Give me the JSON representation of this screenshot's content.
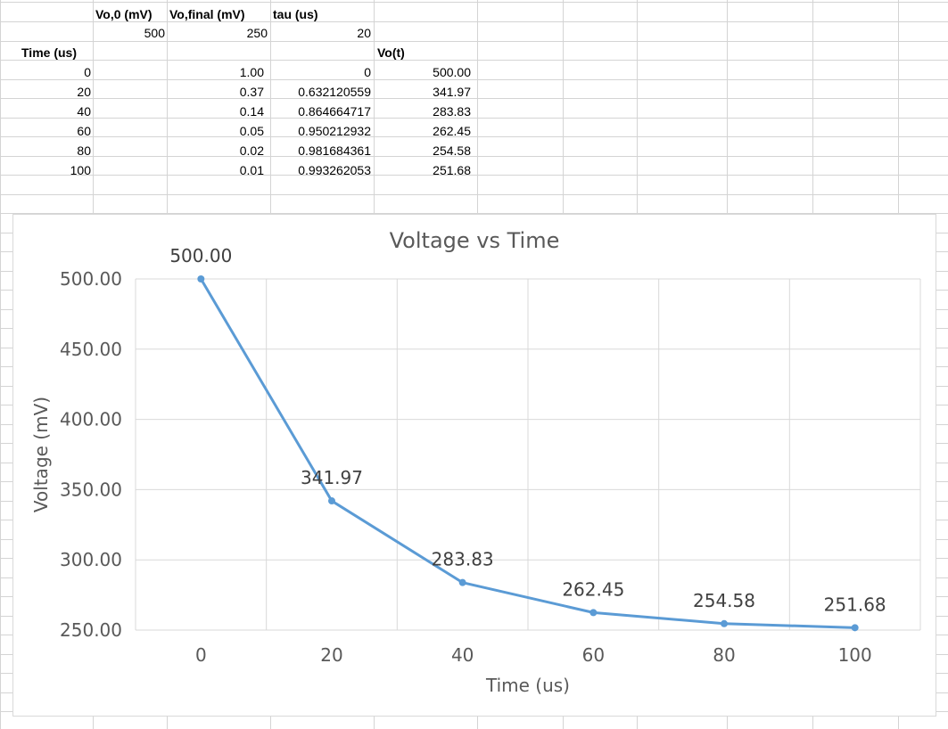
{
  "sheet": {
    "headers_row1": [
      "Vo,0 (mV)",
      "Vo,final (mV)",
      "tau (us)"
    ],
    "params_row2": [
      "500",
      "250",
      "20"
    ],
    "col_headers": {
      "time": "Time (us)",
      "vot": "Vo(t)"
    },
    "rows": [
      {
        "time": "0",
        "exp": "1.00",
        "one_minus": "0",
        "vot": "500.00"
      },
      {
        "time": "20",
        "exp": "0.37",
        "one_minus": "0.632120559",
        "vot": "341.97"
      },
      {
        "time": "40",
        "exp": "0.14",
        "one_minus": "0.864664717",
        "vot": "283.83"
      },
      {
        "time": "60",
        "exp": "0.05",
        "one_minus": "0.950212932",
        "vot": "262.45"
      },
      {
        "time": "80",
        "exp": "0.02",
        "one_minus": "0.981684361",
        "vot": "254.58"
      },
      {
        "time": "100",
        "exp": "0.01",
        "one_minus": "0.993262053",
        "vot": "251.68"
      }
    ]
  },
  "chart_data": {
    "type": "line",
    "title": "Voltage vs Time",
    "xlabel": "Time (us)",
    "ylabel": "Voltage (mV)",
    "categories": [
      "0",
      "20",
      "40",
      "60",
      "80",
      "100"
    ],
    "series": [
      {
        "values": [
          500.0,
          341.97,
          283.83,
          262.45,
          254.58,
          251.68
        ],
        "labels": [
          "500.00",
          "341.97",
          "283.83",
          "262.45",
          "254.58",
          "251.68"
        ],
        "color": "#5b9bd5"
      }
    ],
    "ylim": [
      250,
      500
    ],
    "yticks": [
      "250.00",
      "300.00",
      "350.00",
      "400.00",
      "450.00",
      "500.00"
    ],
    "grid": true,
    "legend": "none"
  }
}
